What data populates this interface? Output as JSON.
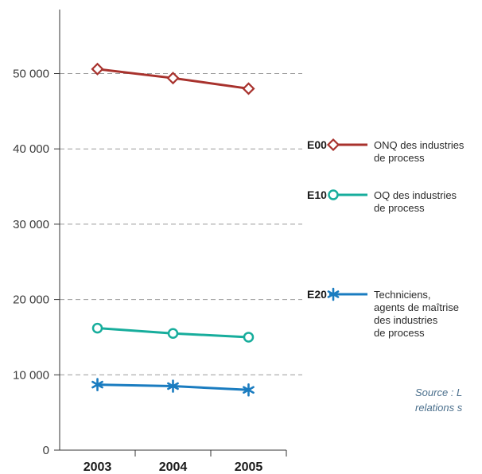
{
  "chart_data": {
    "type": "line",
    "categories": [
      "2003",
      "2004",
      "2005"
    ],
    "ylim": [
      0,
      55000
    ],
    "yticks": [
      0,
      10000,
      20000,
      30000,
      40000,
      50000
    ],
    "ytick_labels": [
      "0",
      "10 000",
      "20 000",
      "30 000",
      "40 000",
      "50 000"
    ],
    "grid": "horizontal dashed",
    "legend_position": "right",
    "series": [
      {
        "code": "E00",
        "name_lines": [
          "ONQ des industries",
          "de process"
        ],
        "values": [
          50600,
          49400,
          48000
        ],
        "color": "#a8322d",
        "marker": "diamond"
      },
      {
        "code": "E10",
        "name_lines": [
          "OQ des industries",
          "de process"
        ],
        "values": [
          16200,
          15500,
          15000
        ],
        "color": "#17ad9c",
        "marker": "circle"
      },
      {
        "code": "E20",
        "name_lines": [
          "Techniciens,",
          "agents de maîtrise",
          "des industries",
          "de process"
        ],
        "values": [
          8700,
          8500,
          8000
        ],
        "color": "#1a7cc0",
        "marker": "asterisk"
      }
    ]
  },
  "source": {
    "line1": "Source : L",
    "line2": "relations s"
  }
}
